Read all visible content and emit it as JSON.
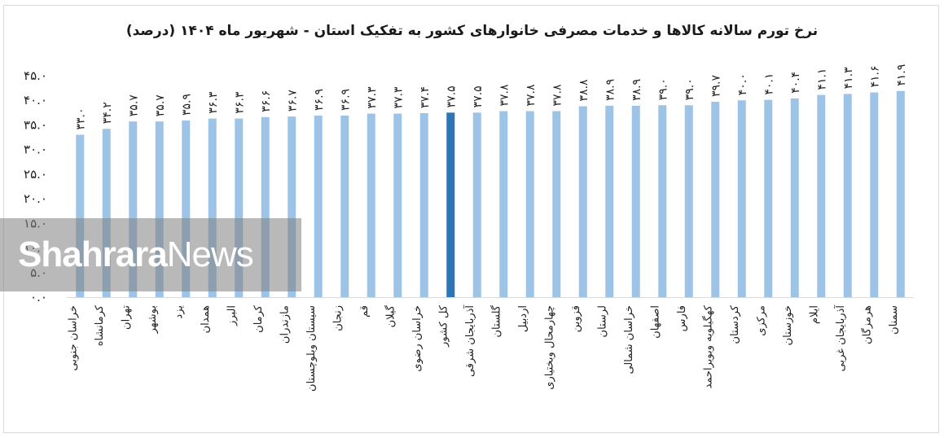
{
  "chart_data": {
    "type": "bar",
    "title": "نرخ تورم سالانه کالاها و خدمات مصرفی خانوارهای کشور به تفکیک استان - شهریور ماه ۱۴۰۴ (درصد)",
    "categories": [
      "خراسان جنوبی",
      "کرمانشاه",
      "تهران",
      "بوشهر",
      "یزد",
      "همدان",
      "البرز",
      "کرمان",
      "مازندران",
      "سیستان وبلوچستان",
      "زنجان",
      "قم",
      "گیلان",
      "خراسان رضوی",
      "کل کشور",
      "آذربایجان شرقی",
      "گلستان",
      "اردبیل",
      "چهارمحال وبختیاری",
      "قزوین",
      "لرستان",
      "خراسان شمالی",
      "اصفهان",
      "فارس",
      "کهگیلویه وبویراحمد",
      "کردستان",
      "مرکزی",
      "خوزستان",
      "ایلام",
      "آذربایجان غربی",
      "هرمزگان",
      "سمنان"
    ],
    "values": [
      33.0,
      34.2,
      35.7,
      35.7,
      35.9,
      36.3,
      36.3,
      36.6,
      36.7,
      36.9,
      36.9,
      37.3,
      37.3,
      37.4,
      37.5,
      37.5,
      37.8,
      37.8,
      37.8,
      38.8,
      38.9,
      38.9,
      39.0,
      39.0,
      39.7,
      40.0,
      40.1,
      40.4,
      41.1,
      41.3,
      41.6,
      41.9
    ],
    "value_labels": [
      "۳۳.۰",
      "۳۴.۲",
      "۳۵.۷",
      "۳۵.۷",
      "۳۵.۹",
      "۳۶.۳",
      "۳۶.۳",
      "۳۶.۶",
      "۳۶.۷",
      "۳۶.۹",
      "۳۶.۹",
      "۳۷.۳",
      "۳۷.۳",
      "۳۷.۴",
      "۳۷.۵",
      "۳۷.۵",
      "۳۷.۸",
      "۳۷.۸",
      "۳۷.۸",
      "۳۸.۸",
      "۳۸.۹",
      "۳۸.۹",
      "۳۹.۰",
      "۳۹.۰",
      "۳۹.۷",
      "۴۰.۰",
      "۴۰.۱",
      "۴۰.۴",
      "۴۱.۱",
      "۴۱.۳",
      "۴۱.۶",
      "۴۱.۹"
    ],
    "highlight_category": "کل کشور",
    "yticks": [
      "۰.۰",
      "۵.۰",
      "۱۰.۰",
      "۱۵.۰",
      "۲۰.۰",
      "۲۵.۰",
      "۳۰.۰",
      "۳۵.۰",
      "۴۰.۰",
      "۴۵.۰"
    ],
    "ylim": [
      0,
      45
    ],
    "grid": false,
    "colors": {
      "bar": "#9dc3e6",
      "highlight": "#2e75b6",
      "axis": "#d9d9d9"
    }
  },
  "watermark": {
    "bold": "Shahrara",
    "light": "News"
  }
}
